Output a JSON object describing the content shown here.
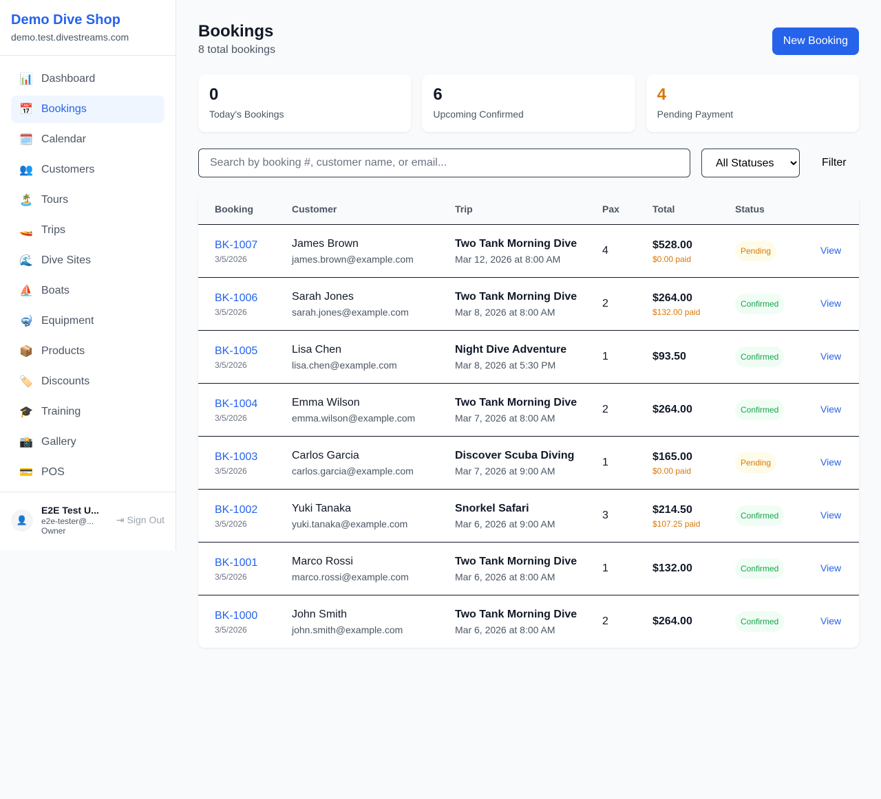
{
  "sidebar": {
    "shop_name": "Demo Dive Shop",
    "domain": "demo.test.divestreams.com",
    "items": [
      {
        "label": "Dashboard",
        "icon": "📊",
        "name": "bar-chart-icon"
      },
      {
        "label": "Bookings",
        "icon": "📅",
        "name": "calendar-icon",
        "active": true
      },
      {
        "label": "Calendar",
        "icon": "🗓️",
        "name": "spiral-calendar-icon"
      },
      {
        "label": "Customers",
        "icon": "👥",
        "name": "users-icon"
      },
      {
        "label": "Tours",
        "icon": "🏝️",
        "name": "island-icon"
      },
      {
        "label": "Trips",
        "icon": "🚤",
        "name": "speedboat-icon"
      },
      {
        "label": "Dive Sites",
        "icon": "🌊",
        "name": "wave-icon"
      },
      {
        "label": "Boats",
        "icon": "⛵",
        "name": "sailboat-icon"
      },
      {
        "label": "Equipment",
        "icon": "🤿",
        "name": "diving-mask-icon"
      },
      {
        "label": "Products",
        "icon": "📦",
        "name": "package-icon"
      },
      {
        "label": "Discounts",
        "icon": "🏷️",
        "name": "tag-icon"
      },
      {
        "label": "Training",
        "icon": "🎓",
        "name": "graduation-cap-icon"
      },
      {
        "label": "Gallery",
        "icon": "📸",
        "name": "camera-icon"
      },
      {
        "label": "POS",
        "icon": "💳",
        "name": "credit-card-icon"
      }
    ],
    "user": {
      "name": "E2E Test U...",
      "email": "e2e-tester@...",
      "role": "Owner",
      "sign_out": "Sign Out"
    }
  },
  "header": {
    "title": "Bookings",
    "subtitle": "8 total bookings",
    "new_booking": "New Booking"
  },
  "stats": [
    {
      "value": "0",
      "label": "Today's Bookings",
      "color": "#111827"
    },
    {
      "value": "6",
      "label": "Upcoming Confirmed",
      "color": "#111827"
    },
    {
      "value": "4",
      "label": "Pending Payment",
      "color": "#d97706"
    }
  ],
  "filters": {
    "search_placeholder": "Search by booking #, customer name, or email...",
    "status": "All Statuses",
    "filter": "Filter"
  },
  "table": {
    "columns": [
      "Booking",
      "Customer",
      "Trip",
      "Pax",
      "Total",
      "Status",
      ""
    ],
    "rows": [
      {
        "id": "BK-1007",
        "date": "3/5/2026",
        "customer": "James Brown",
        "email": "james.brown@example.com",
        "trip": "Two Tank Morning Dive",
        "when": "Mar 12, 2026 at 8:00 AM",
        "pax": "4",
        "total": "$528.00",
        "paid": "$0.00 paid",
        "status": "Pending",
        "action": "View"
      },
      {
        "id": "BK-1006",
        "date": "3/5/2026",
        "customer": "Sarah Jones",
        "email": "sarah.jones@example.com",
        "trip": "Two Tank Morning Dive",
        "when": "Mar 8, 2026 at 8:00 AM",
        "pax": "2",
        "total": "$264.00",
        "paid": "$132.00 paid",
        "status": "Confirmed",
        "action": "View"
      },
      {
        "id": "BK-1005",
        "date": "3/5/2026",
        "customer": "Lisa Chen",
        "email": "lisa.chen@example.com",
        "trip": "Night Dive Adventure",
        "when": "Mar 8, 2026 at 5:30 PM",
        "pax": "1",
        "total": "$93.50",
        "paid": null,
        "status": "Confirmed",
        "action": "View"
      },
      {
        "id": "BK-1004",
        "date": "3/5/2026",
        "customer": "Emma Wilson",
        "email": "emma.wilson@example.com",
        "trip": "Two Tank Morning Dive",
        "when": "Mar 7, 2026 at 8:00 AM",
        "pax": "2",
        "total": "$264.00",
        "paid": null,
        "status": "Confirmed",
        "action": "View"
      },
      {
        "id": "BK-1003",
        "date": "3/5/2026",
        "customer": "Carlos Garcia",
        "email": "carlos.garcia@example.com",
        "trip": "Discover Scuba Diving",
        "when": "Mar 7, 2026 at 9:00 AM",
        "pax": "1",
        "total": "$165.00",
        "paid": "$0.00 paid",
        "status": "Pending",
        "action": "View"
      },
      {
        "id": "BK-1002",
        "date": "3/5/2026",
        "customer": "Yuki Tanaka",
        "email": "yuki.tanaka@example.com",
        "trip": "Snorkel Safari",
        "when": "Mar 6, 2026 at 9:00 AM",
        "pax": "3",
        "total": "$214.50",
        "paid": "$107.25 paid",
        "status": "Confirmed",
        "action": "View"
      },
      {
        "id": "BK-1001",
        "date": "3/5/2026",
        "customer": "Marco Rossi",
        "email": "marco.rossi@example.com",
        "trip": "Two Tank Morning Dive",
        "when": "Mar 6, 2026 at 8:00 AM",
        "pax": "1",
        "total": "$132.00",
        "paid": null,
        "status": "Confirmed",
        "action": "View"
      },
      {
        "id": "BK-1000",
        "date": "3/5/2026",
        "customer": "John Smith",
        "email": "john.smith@example.com",
        "trip": "Two Tank Morning Dive",
        "when": "Mar 6, 2026 at 8:00 AM",
        "pax": "2",
        "total": "$264.00",
        "paid": null,
        "status": "Confirmed",
        "action": "View"
      }
    ]
  }
}
